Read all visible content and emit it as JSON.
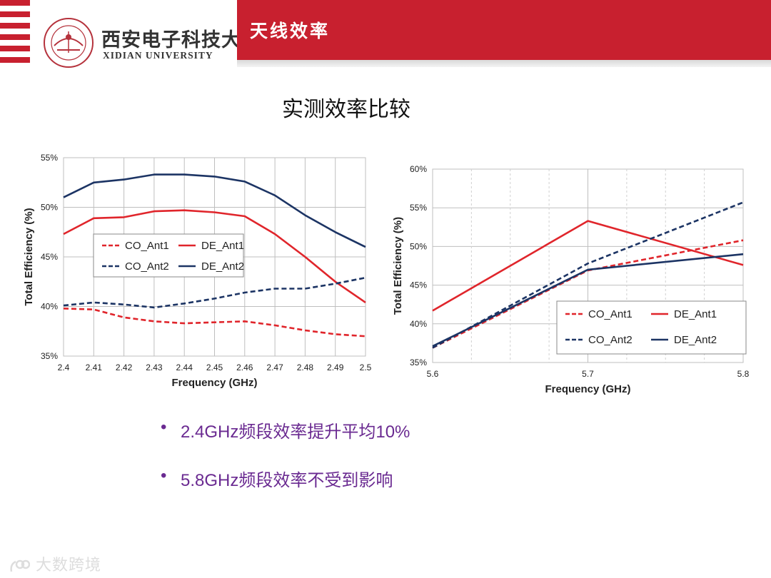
{
  "header": {
    "title": "天线效率",
    "university_cn": "西安电子科技大学",
    "university_en": "XIDIAN UNIVERSITY",
    "brand_color": "#c8202f"
  },
  "slide_title": "实测效率比较",
  "bullets": [
    "2.4GHz频段效率提升平均10%",
    "5.8GHz频段效率不受到影响"
  ],
  "watermark": "大数跨境",
  "chart_data": [
    {
      "type": "line",
      "xlabel": "Frequency (GHz)",
      "ylabel": "Total Efficiency (%)",
      "x": [
        2.4,
        2.41,
        2.42,
        2.43,
        2.44,
        2.45,
        2.46,
        2.47,
        2.48,
        2.49,
        2.5
      ],
      "x_ticks": [
        "2.4",
        "2.41",
        "2.42",
        "2.43",
        "2.44",
        "2.45",
        "2.46",
        "2.47",
        "2.48",
        "2.49",
        "2.5"
      ],
      "ylim": [
        35,
        55
      ],
      "y_ticks": [
        "35%",
        "40%",
        "45%",
        "50%",
        "55%"
      ],
      "grid": true,
      "legend_position": "center-left",
      "series": [
        {
          "name": "CO_Ant1",
          "color": "#e0252b",
          "style": "dashed",
          "values": [
            39.8,
            39.7,
            38.9,
            38.5,
            38.3,
            38.4,
            38.5,
            38.1,
            37.6,
            37.2,
            37.0
          ]
        },
        {
          "name": "DE_Ant1",
          "color": "#e0252b",
          "style": "solid",
          "values": [
            47.3,
            48.9,
            49.0,
            49.6,
            49.7,
            49.5,
            49.1,
            47.3,
            45.0,
            42.5,
            40.4
          ]
        },
        {
          "name": "CO_Ant2",
          "color": "#1c3464",
          "style": "dashed",
          "values": [
            40.1,
            40.4,
            40.2,
            39.9,
            40.3,
            40.8,
            41.4,
            41.8,
            41.8,
            42.3,
            42.9
          ]
        },
        {
          "name": "DE_Ant2",
          "color": "#1c3464",
          "style": "solid",
          "values": [
            51.0,
            52.5,
            52.8,
            53.3,
            53.3,
            53.1,
            52.6,
            51.2,
            49.2,
            47.5,
            46.0
          ]
        }
      ]
    },
    {
      "type": "line",
      "xlabel": "Frequency (GHz)",
      "ylabel": "Total Efficiency (%)",
      "x": [
        5.6,
        5.7,
        5.8
      ],
      "x_ticks": [
        "5.6",
        "5.7",
        "5.8"
      ],
      "ylim": [
        35,
        60
      ],
      "y_ticks": [
        "35%",
        "40%",
        "45%",
        "50%",
        "55%",
        "60%"
      ],
      "grid": true,
      "legend_position": "bottom-right",
      "series": [
        {
          "name": "CO_Ant1",
          "color": "#e0252b",
          "style": "dashed",
          "values": [
            36.9,
            46.9,
            50.8
          ]
        },
        {
          "name": "DE_Ant1",
          "color": "#e0252b",
          "style": "solid",
          "values": [
            41.7,
            53.3,
            47.6
          ]
        },
        {
          "name": "CO_Ant2",
          "color": "#1c3464",
          "style": "dashed",
          "values": [
            36.9,
            47.8,
            55.7
          ]
        },
        {
          "name": "DE_Ant2",
          "color": "#1c3464",
          "style": "solid",
          "values": [
            37.1,
            47.0,
            49.0
          ]
        }
      ]
    }
  ]
}
